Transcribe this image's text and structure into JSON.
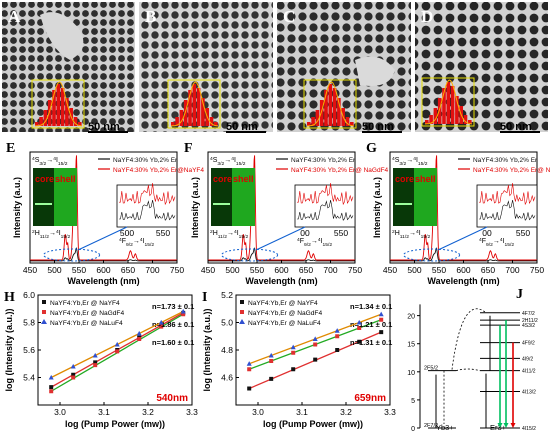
{
  "panels": {
    "A": {
      "label": "A",
      "scale": "50 nm"
    },
    "B": {
      "label": "B",
      "scale": "50 nm"
    },
    "C": {
      "label": "C",
      "scale": "50 nm"
    },
    "D": {
      "label": "D",
      "scale": "50 nm"
    },
    "E": {
      "label": "E"
    },
    "F": {
      "label": "F"
    },
    "G": {
      "label": "G"
    },
    "H": {
      "label": "H"
    },
    "I": {
      "label": "I"
    },
    "J": {
      "label": "J"
    }
  },
  "spectra": {
    "xlabel": "Wavelength (nm)",
    "ylabel": "Intensity (a.u.)",
    "ticks": [
      "450",
      "500",
      "550",
      "600",
      "650",
      "700",
      "750"
    ],
    "inset_ticks": [
      "500",
      "550"
    ],
    "inset_ticks_FG": [
      "00",
      "550"
    ],
    "core_label": "core",
    "shell_label": "shell",
    "E_legend": [
      "NaYF4:30% Yb,2% Er",
      "NaYF4:30% Yb,2% Er@NaYF4"
    ],
    "F_legend": [
      "NaYF4:30% Yb,2% Er",
      "NaYF4:30% Yb,2% Er@ NaGdF4"
    ],
    "G_legend": [
      "NaYF4:30% Yb,2% Er",
      "NaYF4:30% Yb,2% Er@ NaLuF4"
    ],
    "trans_S": "4S3/2→4I15/2",
    "trans_H": "2H11/2→4I15/2",
    "trans_F": "4F9/2→4I15/2"
  },
  "chart_data": [
    {
      "type": "line",
      "panel": "H",
      "xlabel": "log (Pump Power (mw))",
      "ylabel": "log (Intensity (a.u.))",
      "xlim": [
        2.95,
        3.3
      ],
      "ylim": [
        5.2,
        6.0
      ],
      "xticks": [
        "3.0",
        "3.1",
        "3.2",
        "3.3"
      ],
      "yticks": [
        "5.4",
        "5.6",
        "5.8",
        "6.0"
      ],
      "annotation": "540nm",
      "series": [
        {
          "name": "NaYF4:Yb,Er @ NaYF4",
          "color": "#111111",
          "slope": "n=1.73 ± 0.1",
          "x": [
            2.98,
            3.03,
            3.08,
            3.13,
            3.18,
            3.23,
            3.28
          ],
          "y": [
            5.33,
            5.42,
            5.51,
            5.6,
            5.69,
            5.78,
            5.87
          ]
        },
        {
          "name": "NaYF4:Yb,Er @ NaGdF4",
          "color": "#e03030",
          "slope": "n=1.86 ± 0.1",
          "x": [
            2.98,
            3.03,
            3.08,
            3.13,
            3.18,
            3.23,
            3.28
          ],
          "y": [
            5.3,
            5.4,
            5.49,
            5.59,
            5.68,
            5.77,
            5.86
          ]
        },
        {
          "name": "NaYF4:Yb,Er @ NaLuF4",
          "color": "#3050d0",
          "slope": "n=1.60 ± 0.1",
          "x": [
            2.98,
            3.03,
            3.08,
            3.13,
            3.18,
            3.23,
            3.28
          ],
          "y": [
            5.4,
            5.48,
            5.56,
            5.64,
            5.72,
            5.8,
            5.88
          ]
        }
      ]
    },
    {
      "type": "line",
      "panel": "I",
      "xlabel": "log (Pump Power (mw))",
      "ylabel": "log (Intensity (a.u.))",
      "xlim": [
        2.95,
        3.3
      ],
      "ylim": [
        4.4,
        5.2
      ],
      "xticks": [
        "3.0",
        "3.1",
        "3.2",
        "3.3"
      ],
      "yticks": [
        "4.6",
        "4.8",
        "5.0",
        "5.2"
      ],
      "annotation": "659nm",
      "series": [
        {
          "name": "NaYF4:Yb,Er @ NaYF4",
          "color": "#111111",
          "slope": "n=1.34 ± 0.1",
          "x": [
            2.98,
            3.03,
            3.08,
            3.13,
            3.18,
            3.23,
            3.28
          ],
          "y": [
            4.52,
            4.59,
            4.66,
            4.73,
            4.8,
            4.86,
            4.93
          ]
        },
        {
          "name": "NaYF4:Yb,Er @ NaGdF4",
          "color": "#e03030",
          "slope": "n=1.21 ± 0.1",
          "x": [
            2.98,
            3.03,
            3.08,
            3.13,
            3.18,
            3.23,
            3.28
          ],
          "y": [
            4.66,
            4.72,
            4.78,
            4.84,
            4.9,
            4.96,
            5.02
          ]
        },
        {
          "name": "NaYF4:Yb,Er @ NaLuF4",
          "color": "#3050d0",
          "slope": "n=1.31 ± 0.1",
          "x": [
            2.98,
            3.03,
            3.08,
            3.13,
            3.18,
            3.23,
            3.28
          ],
          "y": [
            4.7,
            4.76,
            4.82,
            4.88,
            4.94,
            5.0,
            5.06
          ]
        }
      ]
    }
  ],
  "energy": {
    "yticks": [
      "0",
      "5",
      "10",
      "15",
      "20"
    ],
    "yb_label": "Yb3+",
    "er_label": "Er3+",
    "yb_levels": [
      "2F5/2",
      "2F7/2"
    ],
    "er_levels": [
      "4F7/2",
      "2H11/2",
      "4S3/2",
      "4F9/2",
      "4I9/2",
      "4I11/2",
      "4I13/2",
      "4I15/2"
    ]
  },
  "colors": {
    "green": "#00c000",
    "red": "#e00000",
    "black": "#111111",
    "blue": "#1060d0"
  }
}
